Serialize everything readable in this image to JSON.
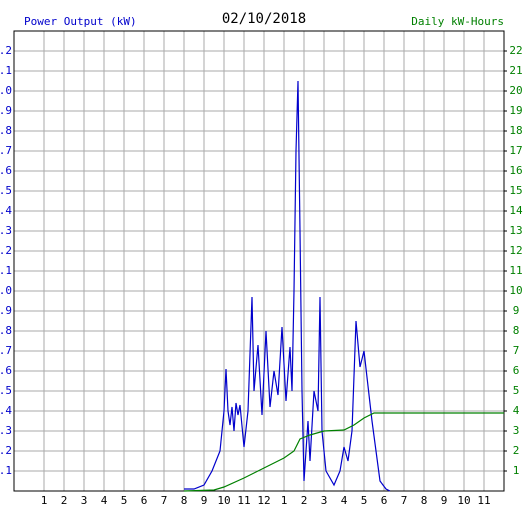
{
  "chart_data": {
    "type": "line",
    "title": "02/10/2018",
    "ylabel": "Power Output (kW)",
    "y2label": "Daily kW-Hours",
    "xlim": [
      -0.5,
      24
    ],
    "xticks": [
      1,
      2,
      3,
      4,
      5,
      6,
      7,
      8,
      9,
      10,
      11,
      12,
      {
        "value": 13,
        "label": "1"
      },
      {
        "value": 14,
        "label": "2"
      },
      {
        "value": 15,
        "label": "3"
      },
      {
        "value": 16,
        "label": "4"
      },
      {
        "value": 17,
        "label": "5"
      },
      {
        "value": 18,
        "label": "6"
      },
      {
        "value": 19,
        "label": "7"
      },
      {
        "value": 20,
        "label": "8"
      },
      {
        "value": 21,
        "label": "9"
      },
      {
        "value": 22,
        "label": "10"
      },
      {
        "value": 23,
        "label": "11"
      }
    ],
    "ylim": [
      0,
      2.3
    ],
    "yticks": [
      0.1,
      0.2,
      0.3,
      0.4,
      0.5,
      0.6,
      0.7,
      0.8,
      0.9,
      {
        "value": 1,
        "label": "1.0"
      },
      1.1,
      1.2,
      1.3,
      1.4,
      1.5,
      1.6,
      1.7,
      1.8,
      1.9,
      {
        "value": 2,
        "label": "2.0"
      },
      2.1,
      2.2
    ],
    "y2lim": [
      0,
      23
    ],
    "y2ticks": [
      1,
      2,
      3,
      4,
      5,
      6,
      7,
      8,
      9,
      10,
      11,
      12,
      13,
      14,
      15,
      16,
      17,
      18,
      19,
      20,
      21,
      22
    ],
    "grid": true,
    "ycolor": "#0000cc",
    "y2color": "#008000",
    "series": [
      {
        "color": "#0000cc",
        "axis": "y",
        "x": [
          8,
          8.5,
          9,
          9.4,
          9.8,
          10,
          10.1,
          10.2,
          10.3,
          10.4,
          10.5,
          10.6,
          10.7,
          10.8,
          11,
          11.2,
          11.4,
          11.5,
          11.7,
          11.9,
          12.1,
          12.3,
          12.5,
          12.7,
          12.9,
          13.1,
          13.3,
          13.4,
          13.5,
          13.6,
          13.7,
          13.8,
          13.9,
          14,
          14.1,
          14.2,
          14.3,
          14.5,
          14.7,
          14.8,
          14.9,
          15.1,
          15.5,
          15.8,
          16,
          16.2,
          16.4,
          16.6,
          16.8,
          17,
          17.4,
          17.8,
          18.1,
          18.3
        ],
        "values": [
          0.01,
          0.01,
          0.03,
          0.1,
          0.2,
          0.4,
          0.61,
          0.4,
          0.33,
          0.42,
          0.3,
          0.44,
          0.38,
          0.43,
          0.22,
          0.4,
          0.97,
          0.5,
          0.73,
          0.38,
          0.8,
          0.42,
          0.6,
          0.48,
          0.82,
          0.45,
          0.72,
          0.5,
          1.0,
          1.7,
          2.05,
          1.3,
          0.5,
          0.05,
          0.2,
          0.35,
          0.15,
          0.5,
          0.4,
          0.97,
          0.3,
          0.1,
          0.03,
          0.1,
          0.22,
          0.15,
          0.3,
          0.85,
          0.62,
          0.7,
          0.35,
          0.05,
          0.01,
          0
        ]
      },
      {
        "color": "#008000",
        "axis": "y2",
        "x": [
          8,
          9.5,
          10,
          11,
          12,
          13,
          13.5,
          13.8,
          14.3,
          15,
          16,
          16.5,
          17,
          17.5,
          18,
          24
        ],
        "values": [
          0,
          0.05,
          0.2,
          0.65,
          1.15,
          1.65,
          2,
          2.6,
          2.8,
          3.0,
          3.05,
          3.3,
          3.65,
          3.9,
          3.9,
          3.9
        ]
      }
    ]
  }
}
